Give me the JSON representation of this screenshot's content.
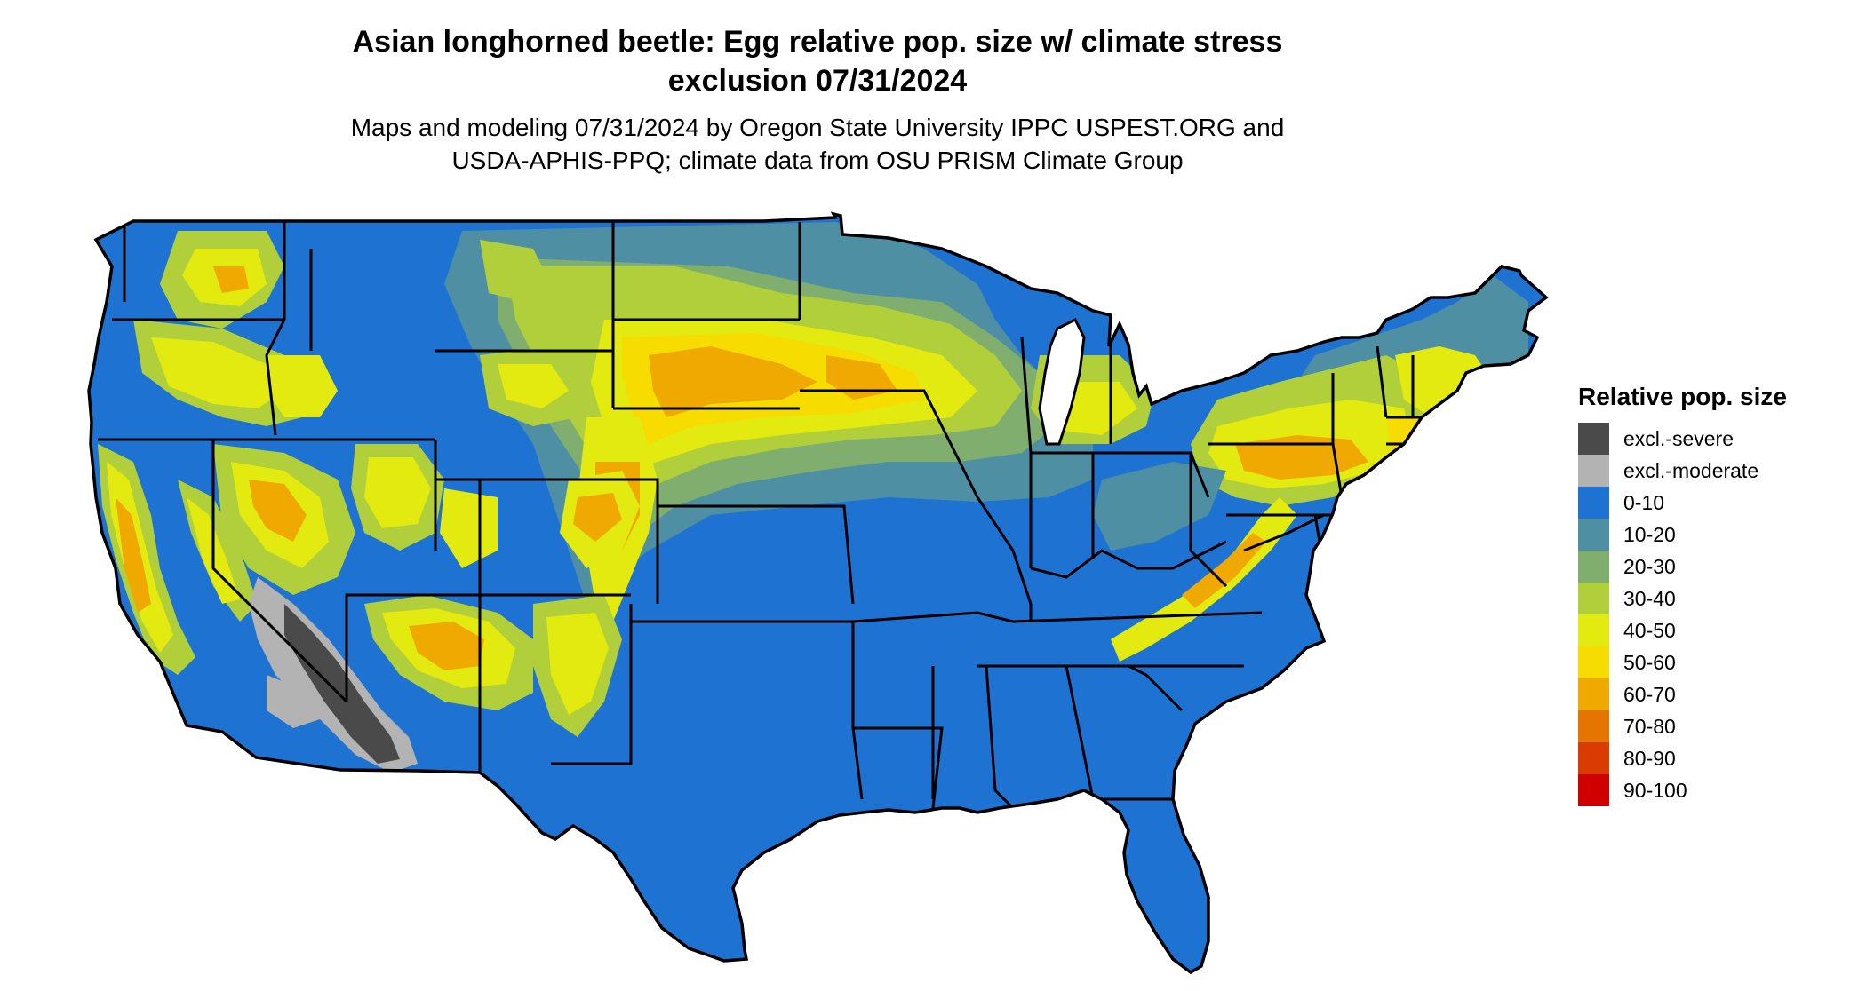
{
  "title_line1": "Asian longhorned beetle: Egg relative pop. size w/ climate stress",
  "title_line2": "exclusion 07/31/2024",
  "subtitle_line1": "Maps and modeling 07/31/2024 by Oregon State University IPPC USPEST.ORG and",
  "subtitle_line2": "USDA-APHIS-PPQ; climate data from OSU PRISM Climate Group",
  "legend": {
    "title": "Relative pop. size",
    "items": [
      {
        "label": "excl.-severe",
        "color": "#4a4a4a"
      },
      {
        "label": "excl.-moderate",
        "color": "#b3b3b3"
      },
      {
        "label": "0-10",
        "color": "#1e73d2"
      },
      {
        "label": "10-20",
        "color": "#4f8fa3"
      },
      {
        "label": "20-30",
        "color": "#7fae6f"
      },
      {
        "label": "30-40",
        "color": "#b0cf3a"
      },
      {
        "label": "40-50",
        "color": "#e2ea0f"
      },
      {
        "label": "50-60",
        "color": "#f7dc00"
      },
      {
        "label": "60-70",
        "color": "#f0a900"
      },
      {
        "label": "70-80",
        "color": "#e57500"
      },
      {
        "label": "80-90",
        "color": "#d93b00"
      },
      {
        "label": "90-100",
        "color": "#d00000"
      }
    ]
  }
}
